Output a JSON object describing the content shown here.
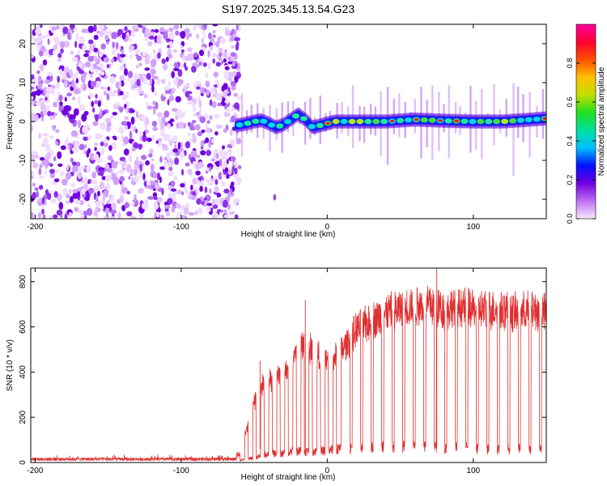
{
  "figure_title": "S197.2025.345.13.54.G23",
  "chart_data": [
    {
      "type": "heatmap",
      "title": "S197.2025.345.13.54.G23",
      "xlabel": "Height of straight line (km)",
      "ylabel": "Frequency (Hz)",
      "xlim": [
        -203,
        150
      ],
      "ylim": [
        -25,
        25
      ],
      "x_ticks": [
        -200,
        -100,
        0,
        100
      ],
      "y_ticks": [
        -20,
        -10,
        0,
        10,
        20
      ],
      "noise_region_x": [
        -203,
        -60
      ],
      "signal_track": [
        [
          -62,
          -1.0
        ],
        [
          -55,
          -0.5
        ],
        [
          -50,
          0.0
        ],
        [
          -45,
          0.3
        ],
        [
          -40,
          -0.5
        ],
        [
          -35,
          -1.5
        ],
        [
          -30,
          -0.8
        ],
        [
          -25,
          0.5
        ],
        [
          -20,
          1.8
        ],
        [
          -15,
          0.5
        ],
        [
          -10,
          -1.5
        ],
        [
          -5,
          -1.0
        ],
        [
          0,
          -0.5
        ],
        [
          5,
          0.0
        ],
        [
          20,
          0.0
        ],
        [
          40,
          0.0
        ],
        [
          60,
          0.5
        ],
        [
          80,
          0.2
        ],
        [
          100,
          0.0
        ],
        [
          120,
          0.0
        ],
        [
          140,
          0.5
        ],
        [
          150,
          0.8
        ]
      ],
      "colorbar": {
        "label": "Normalized spectral amplitude",
        "ticks": [
          0.0,
          0.2,
          0.4,
          0.6,
          0.8
        ],
        "range": [
          0,
          1
        ],
        "colors": [
          "#f8e8ff",
          "#c070f0",
          "#7000e0",
          "#0010ff",
          "#00c0ff",
          "#00e0a0",
          "#20e020",
          "#c0e000",
          "#ffc000",
          "#ff5000",
          "#ff0030",
          "#ff00a0"
        ]
      }
    },
    {
      "type": "line",
      "xlabel": "Height of straight line (km)",
      "ylabel": "SNR (10 * v/v)",
      "xlim": [
        -203,
        150
      ],
      "ylim": [
        0,
        860
      ],
      "x_ticks": [
        -200,
        -100,
        0,
        100
      ],
      "y_ticks": [
        0,
        200,
        400,
        600,
        800
      ],
      "color": "#e03030",
      "envelope": {
        "x": [
          -203,
          -70,
          -60,
          -50,
          -45,
          -40,
          -35,
          -30,
          -25,
          -20,
          -10,
          0,
          5,
          10,
          15,
          20,
          30,
          40,
          50,
          60,
          70,
          80,
          90,
          100,
          110,
          120,
          130,
          140,
          150
        ],
        "high": [
          20,
          20,
          40,
          300,
          380,
          400,
          420,
          460,
          450,
          600,
          560,
          500,
          520,
          560,
          600,
          660,
          700,
          740,
          760,
          780,
          790,
          760,
          780,
          760,
          760,
          760,
          740,
          760,
          740
        ],
        "low": [
          10,
          10,
          10,
          20,
          30,
          40,
          40,
          40,
          50,
          50,
          50,
          50,
          60,
          60,
          60,
          70,
          70,
          70,
          70,
          70,
          70,
          60,
          70,
          60,
          60,
          60,
          60,
          60,
          60
        ]
      },
      "spike_annotations": [
        {
          "x": -46,
          "y": 450
        },
        {
          "x": -15,
          "y": 720
        },
        {
          "x": 75,
          "y": 860
        }
      ]
    }
  ]
}
